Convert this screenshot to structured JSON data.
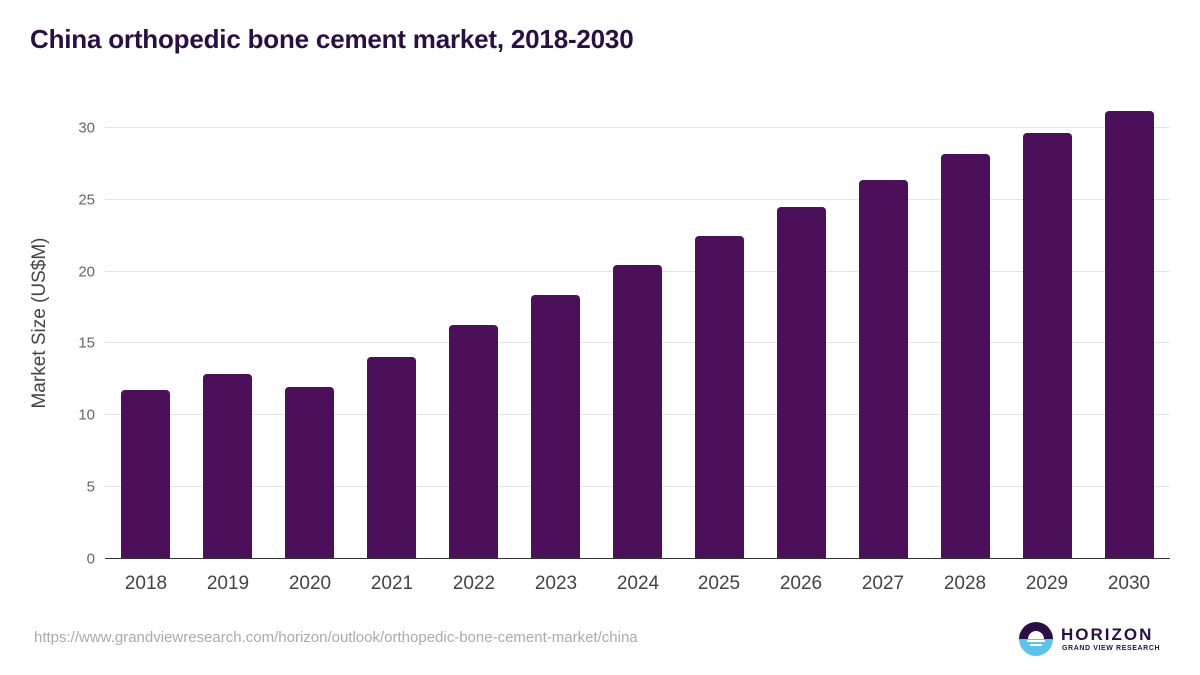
{
  "header": {
    "title": "China orthopedic bone cement market, 2018-2030"
  },
  "axis": {
    "ylabel": "Market Size (US$M)",
    "yticks": [
      "0",
      "5",
      "10",
      "15",
      "20",
      "25",
      "30"
    ]
  },
  "footer": {
    "source": "https://www.grandviewresearch.com/horizon/outlook/orthopedic-bone-cement-market/china",
    "logo_name": "HORIZON",
    "logo_sub": "GRAND VIEW RESEARCH"
  },
  "colors": {
    "bar": "#4b1059",
    "title": "#2a0f44",
    "logo_blue": "#5bc4ea"
  },
  "chart_data": {
    "type": "bar",
    "title": "China orthopedic bone cement market, 2018-2030",
    "xlabel": "",
    "ylabel": "Market Size (US$M)",
    "categories": [
      "2018",
      "2019",
      "2020",
      "2021",
      "2022",
      "2023",
      "2024",
      "2025",
      "2026",
      "2027",
      "2028",
      "2029",
      "2030"
    ],
    "values": [
      11.7,
      12.8,
      11.9,
      14.0,
      16.2,
      18.3,
      20.4,
      22.4,
      24.4,
      26.3,
      28.1,
      29.6,
      31.1
    ],
    "ylim": [
      0,
      32
    ],
    "yticks": [
      0,
      5,
      10,
      15,
      20,
      25,
      30
    ],
    "grid": true,
    "legend": "none"
  }
}
